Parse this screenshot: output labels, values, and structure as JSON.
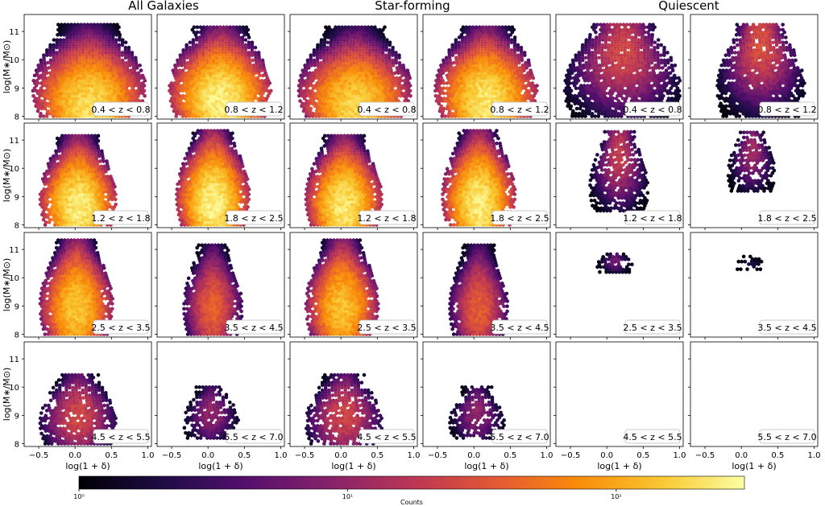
{
  "figure": {
    "group_titles": [
      "All Galaxies",
      "Star-forming",
      "Quiescent"
    ],
    "colorbar": {
      "label": "Counts",
      "tick_labels": [
        "10⁰",
        "10¹",
        "10²"
      ],
      "tick_values": [
        1,
        10,
        100
      ],
      "range": [
        1,
        300
      ],
      "scale": "log",
      "colormap": "inferno"
    }
  },
  "chart_data": {
    "type": "heatmap",
    "subtype": "hexbin",
    "grid": {
      "rows": 4,
      "cols": 6
    },
    "xlabel": "log(1 + δ)",
    "ylabel": "log(M∗/M⊙)",
    "xlim": [
      -0.7,
      1.05
    ],
    "ylim": [
      7.9,
      11.6
    ],
    "x_ticks": [
      -0.5,
      0.0,
      0.5,
      1.0
    ],
    "x_tick_labels": [
      "−0.5",
      "0.0",
      "0.5",
      "1.0"
    ],
    "y_ticks": [
      8,
      9,
      10,
      11
    ],
    "y_tick_labels": [
      "8",
      "9",
      "10",
      "11"
    ],
    "panels": [
      {
        "group": "All Galaxies",
        "label": "0.4 < z < 0.8",
        "x_range": [
          -0.6,
          0.95
        ],
        "y_range": [
          8.0,
          11.3
        ],
        "peak_y": 8.3,
        "peak_count": 200,
        "density": 0.95
      },
      {
        "group": "All Galaxies",
        "label": "0.8 < z < 1.2",
        "x_range": [
          -0.55,
          0.85
        ],
        "y_range": [
          8.0,
          11.2
        ],
        "peak_y": 8.5,
        "peak_count": 250,
        "density": 0.95
      },
      {
        "group": "Star-forming",
        "label": "0.4 < z < 0.8",
        "x_range": [
          -0.6,
          0.95
        ],
        "y_range": [
          8.0,
          11.2
        ],
        "peak_y": 8.3,
        "peak_count": 180,
        "density": 0.95
      },
      {
        "group": "Star-forming",
        "label": "0.8 < z < 1.2",
        "x_range": [
          -0.55,
          0.85
        ],
        "y_range": [
          8.0,
          11.2
        ],
        "peak_y": 8.5,
        "peak_count": 220,
        "density": 0.95
      },
      {
        "group": "Quiescent",
        "label": "0.4 < z < 0.8",
        "x_range": [
          -0.6,
          1.0
        ],
        "y_range": [
          8.0,
          11.3
        ],
        "peak_y": 10.3,
        "peak_count": 25,
        "density": 0.8
      },
      {
        "group": "Quiescent",
        "label": "0.8 < z < 1.2",
        "x_range": [
          -0.35,
          0.85
        ],
        "y_range": [
          8.0,
          11.3
        ],
        "peak_y": 10.6,
        "peak_count": 30,
        "density": 0.85
      },
      {
        "group": "All Galaxies",
        "label": "1.2 < z < 1.8",
        "x_range": [
          -0.5,
          0.55
        ],
        "y_range": [
          8.0,
          11.2
        ],
        "peak_y": 8.6,
        "peak_count": 250,
        "density": 0.95
      },
      {
        "group": "All Galaxies",
        "label": "1.8 < z < 2.5",
        "x_range": [
          -0.45,
          0.55
        ],
        "y_range": [
          8.0,
          11.4
        ],
        "peak_y": 8.7,
        "peak_count": 260,
        "density": 0.95
      },
      {
        "group": "Star-forming",
        "label": "1.2 < z < 1.8",
        "x_range": [
          -0.5,
          0.55
        ],
        "y_range": [
          8.0,
          11.2
        ],
        "peak_y": 8.6,
        "peak_count": 230,
        "density": 0.95
      },
      {
        "group": "Star-forming",
        "label": "1.8 < z < 2.5",
        "x_range": [
          -0.45,
          0.55
        ],
        "y_range": [
          8.0,
          11.4
        ],
        "peak_y": 8.7,
        "peak_count": 240,
        "density": 0.95
      },
      {
        "group": "Quiescent",
        "label": "1.2 < z < 1.8",
        "x_range": [
          -0.25,
          0.55
        ],
        "y_range": [
          8.5,
          11.3
        ],
        "peak_y": 10.5,
        "peak_count": 20,
        "density": 0.75
      },
      {
        "group": "Quiescent",
        "label": "1.8 < z < 2.5",
        "x_range": [
          -0.2,
          0.45
        ],
        "y_range": [
          9.2,
          11.3
        ],
        "peak_y": 10.6,
        "peak_count": 12,
        "density": 0.7
      },
      {
        "group": "All Galaxies",
        "label": "2.5 < z < 3.5",
        "x_range": [
          -0.5,
          0.5
        ],
        "y_range": [
          8.0,
          11.4
        ],
        "peak_y": 8.9,
        "peak_count": 150,
        "density": 0.95
      },
      {
        "group": "All Galaxies",
        "label": "3.5 < z < 4.5",
        "x_range": [
          -0.35,
          0.45
        ],
        "y_range": [
          8.0,
          11.2
        ],
        "peak_y": 8.9,
        "peak_count": 40,
        "density": 0.9
      },
      {
        "group": "Star-forming",
        "label": "2.5 < z < 3.5",
        "x_range": [
          -0.5,
          0.5
        ],
        "y_range": [
          8.0,
          11.4
        ],
        "peak_y": 8.9,
        "peak_count": 140,
        "density": 0.95
      },
      {
        "group": "Star-forming",
        "label": "3.5 < z < 4.5",
        "x_range": [
          -0.35,
          0.45
        ],
        "y_range": [
          8.0,
          11.2
        ],
        "peak_y": 8.9,
        "peak_count": 38,
        "density": 0.9
      },
      {
        "group": "Quiescent",
        "label": "2.5 < z < 3.5",
        "x_range": [
          -0.15,
          0.35
        ],
        "y_range": [
          10.2,
          10.9
        ],
        "peak_y": 10.6,
        "peak_count": 6,
        "density": 0.75
      },
      {
        "group": "Quiescent",
        "label": "3.5 < z < 4.5",
        "x_range": [
          -0.1,
          0.3
        ],
        "y_range": [
          10.3,
          10.8
        ],
        "peak_y": 10.5,
        "peak_count": 2,
        "density": 0.55
      },
      {
        "group": "All Galaxies",
        "label": "4.5 < z < 5.5",
        "x_range": [
          -0.5,
          0.55
        ],
        "y_range": [
          8.0,
          10.5
        ],
        "peak_y": 9.0,
        "peak_count": 25,
        "density": 0.75
      },
      {
        "group": "All Galaxies",
        "label": "5.5 < z < 7.0",
        "x_range": [
          -0.35,
          0.4
        ],
        "y_range": [
          8.2,
          10.0
        ],
        "peak_y": 9.1,
        "peak_count": 10,
        "density": 0.7
      },
      {
        "group": "Star-forming",
        "label": "4.5 < z < 5.5",
        "x_range": [
          -0.5,
          0.55
        ],
        "y_range": [
          8.0,
          10.5
        ],
        "peak_y": 9.0,
        "peak_count": 24,
        "density": 0.75
      },
      {
        "group": "Star-forming",
        "label": "5.5 < z < 7.0",
        "x_range": [
          -0.35,
          0.4
        ],
        "y_range": [
          8.2,
          10.0
        ],
        "peak_y": 9.1,
        "peak_count": 10,
        "density": 0.7
      },
      {
        "group": "Quiescent",
        "label": "4.5 < z < 5.5",
        "x_range": null,
        "y_range": null,
        "peak_y": null,
        "peak_count": 0,
        "density": 0
      },
      {
        "group": "Quiescent",
        "label": "5.5 < z < 7.0",
        "x_range": null,
        "y_range": null,
        "peak_y": null,
        "peak_count": 0,
        "density": 0
      }
    ]
  }
}
